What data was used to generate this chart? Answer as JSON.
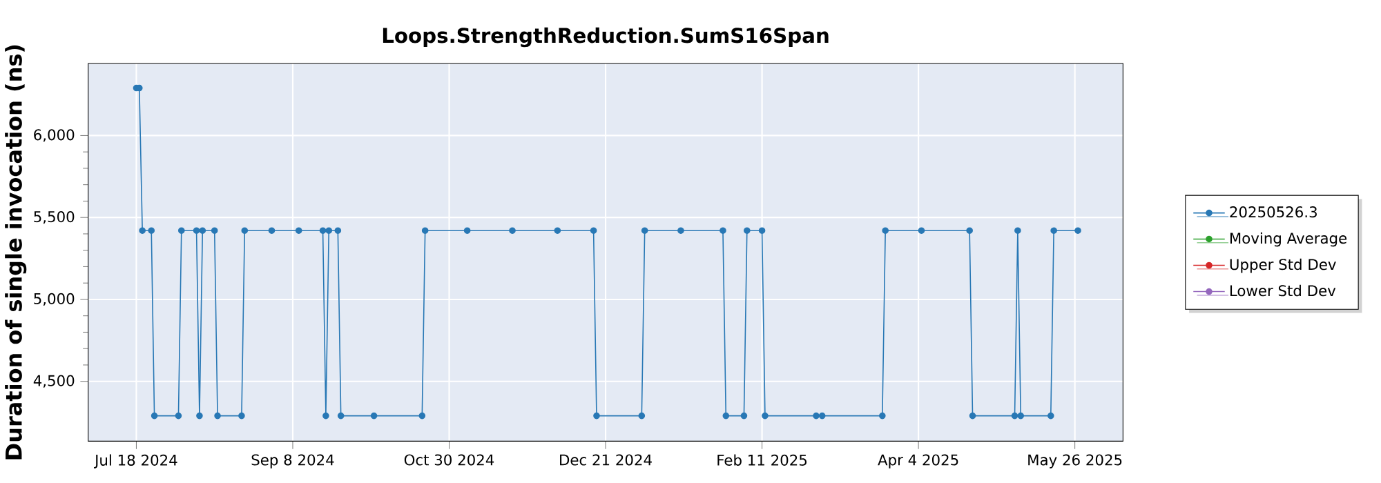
{
  "chart_data": {
    "type": "line",
    "title": "Loops.StrengthReduction.SumS16Span",
    "ylabel": "Duration of single invocation (ns)",
    "x": [
      "2024-07-18",
      "2024-07-19",
      "2024-07-20",
      "2024-07-23",
      "2024-07-24",
      "2024-08-01",
      "2024-08-02",
      "2024-08-07",
      "2024-08-08",
      "2024-08-09",
      "2024-08-13",
      "2024-08-14",
      "2024-08-22",
      "2024-08-23",
      "2024-09-01",
      "2024-09-10",
      "2024-09-18",
      "2024-09-19",
      "2024-09-20",
      "2024-09-23",
      "2024-09-24",
      "2024-10-05",
      "2024-10-21",
      "2024-10-22",
      "2024-11-05",
      "2024-11-20",
      "2024-12-05",
      "2024-12-17",
      "2024-12-18",
      "2025-01-02",
      "2025-01-03",
      "2025-01-15",
      "2025-01-29",
      "2025-01-30",
      "2025-02-05",
      "2025-02-06",
      "2025-02-11",
      "2025-02-12",
      "2025-03-01",
      "2025-03-03",
      "2025-03-23",
      "2025-03-24",
      "2025-04-05",
      "2025-04-21",
      "2025-04-22",
      "2025-05-06",
      "2025-05-07",
      "2025-05-08",
      "2025-05-18",
      "2025-05-19",
      "2025-05-27"
    ],
    "series": [
      {
        "name": "20250526.3",
        "color": "#2878b5",
        "values": [
          6290,
          6290,
          5420,
          5420,
          4290,
          4290,
          5420,
          5420,
          4290,
          5420,
          5420,
          4290,
          4290,
          5420,
          5420,
          5420,
          5420,
          4290,
          5420,
          5420,
          4290,
          4290,
          4290,
          5420,
          5420,
          5420,
          5420,
          5420,
          4290,
          4290,
          5420,
          5420,
          5420,
          4290,
          4290,
          5420,
          5420,
          4290,
          4290,
          4290,
          4290,
          5420,
          5420,
          5420,
          4290,
          4290,
          5420,
          4290,
          4290,
          5420,
          5420
        ]
      },
      {
        "name": "Moving Average",
        "color": "#2ca02c",
        "values": [
          null,
          null,
          null,
          null,
          null,
          null,
          null,
          null,
          null,
          null,
          null,
          null,
          null,
          null,
          null,
          null,
          null,
          null,
          null,
          null,
          null,
          null,
          null,
          null,
          null,
          null,
          null,
          null,
          null,
          null,
          null,
          null,
          null,
          null,
          null,
          null,
          null,
          null,
          null,
          null,
          null,
          null,
          null,
          null,
          null,
          null,
          null,
          null,
          null,
          null,
          null
        ]
      },
      {
        "name": "Upper Std Dev",
        "color": "#d62728",
        "values": [
          null,
          null,
          null,
          null,
          null,
          null,
          null,
          null,
          null,
          null,
          null,
          null,
          null,
          null,
          null,
          null,
          null,
          null,
          null,
          null,
          null,
          null,
          null,
          null,
          null,
          null,
          null,
          null,
          null,
          null,
          null,
          null,
          null,
          null,
          null,
          null,
          null,
          null,
          null,
          null,
          null,
          null,
          null,
          null,
          null,
          null,
          null,
          null,
          null,
          null,
          null
        ]
      },
      {
        "name": "Lower Std Dev",
        "color": "#9467bd",
        "values": [
          null,
          null,
          null,
          null,
          null,
          null,
          null,
          null,
          null,
          null,
          null,
          null,
          null,
          null,
          null,
          null,
          null,
          null,
          null,
          null,
          null,
          null,
          null,
          null,
          null,
          null,
          null,
          null,
          null,
          null,
          null,
          null,
          null,
          null,
          null,
          null,
          null,
          null,
          null,
          null,
          null,
          null,
          null,
          null,
          null,
          null,
          null,
          null,
          null,
          null,
          null
        ]
      }
    ],
    "xlim": [
      "2024-07-02",
      "2025-06-11"
    ],
    "xticks": [
      {
        "value": "2024-07-18",
        "label": "Jul 18 2024"
      },
      {
        "value": "2024-09-08",
        "label": "Sep 8 2024"
      },
      {
        "value": "2024-10-30",
        "label": "Oct 30 2024"
      },
      {
        "value": "2024-12-21",
        "label": "Dec 21 2024"
      },
      {
        "value": "2025-02-11",
        "label": "Feb 11 2025"
      },
      {
        "value": "2025-04-04",
        "label": "Apr 4 2025"
      },
      {
        "value": "2025-05-26",
        "label": "May 26 2025"
      }
    ],
    "ylim": [
      4135,
      6440
    ],
    "yticks": [
      {
        "value": 4500,
        "label": "4,500"
      },
      {
        "value": 5000,
        "label": "5,000"
      },
      {
        "value": 5500,
        "label": "5,500"
      },
      {
        "value": 6000,
        "label": "6,000"
      }
    ],
    "grid": true,
    "legend": "right",
    "marker": "circle",
    "line_style": "solid"
  }
}
